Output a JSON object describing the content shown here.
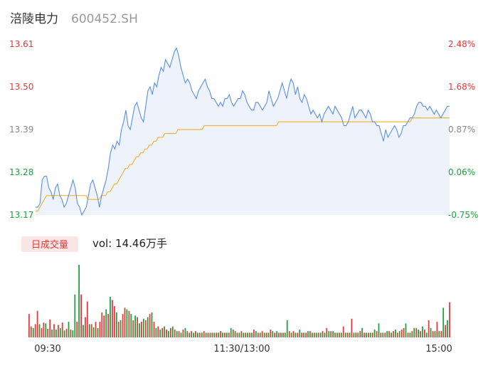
{
  "header": {
    "name": "涪陵电力",
    "code": "600452.SH"
  },
  "volume_panel": {
    "tab_label": "日成交量",
    "summary": "vol: 14.46万手"
  },
  "colors": {
    "price_line": "#5b8ee0",
    "avg_line": "#f0b440",
    "area_fill": "#eef3fb",
    "up": "#e03a3a",
    "down": "#1aa13b",
    "neutral": "#888888",
    "badge_bg": "#fbe6e6"
  },
  "chart_data": [
    {
      "type": "line",
      "ylim": [
        13.17,
        13.61
      ],
      "y_ticks": [
        13.61,
        13.5,
        13.39,
        13.28,
        13.17
      ],
      "y_tick_labels": [
        "13.61",
        "13.50",
        "13.39",
        "13.28",
        "13.17"
      ],
      "y_right_ticks": [
        "2.48%",
        "1.68%",
        "0.87%",
        "0.06%",
        "-0.75%"
      ],
      "x_tick_labels": [
        "09:30",
        "11:30/13:00",
        "15:00"
      ],
      "series": [
        {
          "key": "price",
          "values": [
            13.19,
            13.19,
            13.2,
            13.26,
            13.27,
            13.27,
            13.24,
            13.23,
            13.21,
            13.24,
            13.25,
            13.22,
            13.21,
            13.19,
            13.2,
            13.22,
            13.24,
            13.26,
            13.24,
            13.2,
            13.19,
            13.17,
            13.18,
            13.19,
            13.22,
            13.25,
            13.26,
            13.24,
            13.22,
            13.19,
            13.22,
            13.24,
            13.26,
            13.29,
            13.33,
            13.35,
            13.34,
            13.36,
            13.35,
            13.39,
            13.41,
            13.44,
            13.4,
            13.39,
            13.42,
            13.45,
            13.46,
            13.44,
            13.42,
            13.41,
            13.45,
            13.49,
            13.5,
            13.48,
            13.51,
            13.5,
            13.53,
            13.55,
            13.54,
            13.57,
            13.56,
            13.55,
            13.57,
            13.59,
            13.6,
            13.58,
            13.55,
            13.53,
            13.51,
            13.52,
            13.51,
            13.49,
            13.48,
            13.47,
            13.49,
            13.5,
            13.51,
            13.52,
            13.5,
            13.49,
            13.47,
            13.47,
            13.46,
            13.45,
            13.46,
            13.45,
            13.47,
            13.47,
            13.48,
            13.46,
            13.45,
            13.46,
            13.47,
            13.47,
            13.49,
            13.48,
            13.46,
            13.45,
            13.44,
            13.44,
            13.46,
            13.46,
            13.45,
            13.44,
            13.45,
            13.46,
            13.49,
            13.47,
            13.45,
            13.46,
            13.47,
            13.49,
            13.51,
            13.49,
            13.47,
            13.5,
            13.52,
            13.51,
            13.48,
            13.5,
            13.47,
            13.46,
            13.48,
            13.47,
            13.45,
            13.43,
            13.44,
            13.43,
            13.42,
            13.43,
            13.41,
            13.43,
            13.44,
            13.45,
            13.44,
            13.43,
            13.45,
            13.44,
            13.43,
            13.42,
            13.4,
            13.4,
            13.41,
            13.43,
            13.45,
            13.42,
            13.43,
            13.44,
            13.44,
            13.43,
            13.42,
            13.44,
            13.43,
            13.41,
            13.41,
            13.4,
            13.4,
            13.38,
            13.36,
            13.39,
            13.37,
            13.38,
            13.39,
            13.4,
            13.39,
            13.37,
            13.38,
            13.4,
            13.4,
            13.41,
            13.42,
            13.42,
            13.43,
            13.45,
            13.46,
            13.46,
            13.45,
            13.45,
            13.44,
            13.45,
            13.44,
            13.43,
            13.44,
            13.43,
            13.42,
            13.43,
            13.44,
            13.45,
            13.45
          ],
          "color": "#5b8ee0"
        },
        {
          "key": "average",
          "values": [
            13.18,
            13.18,
            13.19,
            13.2,
            13.21,
            13.22,
            13.22,
            13.22,
            13.22,
            13.22,
            13.22,
            13.22,
            13.22,
            13.22,
            13.22,
            13.22,
            13.22,
            13.22,
            13.22,
            13.22,
            13.22,
            13.22,
            13.22,
            13.22,
            13.21,
            13.21,
            13.21,
            13.21,
            13.21,
            13.21,
            13.22,
            13.22,
            13.22,
            13.23,
            13.23,
            13.24,
            13.25,
            13.25,
            13.26,
            13.27,
            13.28,
            13.29,
            13.29,
            13.3,
            13.3,
            13.31,
            13.32,
            13.32,
            13.33,
            13.33,
            13.34,
            13.34,
            13.35,
            13.35,
            13.36,
            13.36,
            13.37,
            13.37,
            13.37,
            13.38,
            13.38,
            13.38,
            13.38,
            13.38,
            13.38,
            13.39,
            13.39,
            13.39,
            13.39,
            13.39,
            13.39,
            13.39,
            13.39,
            13.39,
            13.39,
            13.39,
            13.39,
            13.4,
            13.4,
            13.4,
            13.4,
            13.4,
            13.4,
            13.4,
            13.4,
            13.4,
            13.4,
            13.4,
            13.4,
            13.4,
            13.4,
            13.4,
            13.4,
            13.4,
            13.4,
            13.4,
            13.4,
            13.4,
            13.4,
            13.4,
            13.4,
            13.4,
            13.4,
            13.4,
            13.4,
            13.4,
            13.4,
            13.4,
            13.4,
            13.4,
            13.4,
            13.41,
            13.41,
            13.41,
            13.41,
            13.41,
            13.41,
            13.41,
            13.41,
            13.41,
            13.41,
            13.41,
            13.41,
            13.41,
            13.41,
            13.41,
            13.41,
            13.41,
            13.41,
            13.41,
            13.41,
            13.41,
            13.41,
            13.41,
            13.41,
            13.41,
            13.41,
            13.41,
            13.41,
            13.41,
            13.41,
            13.41,
            13.41,
            13.41,
            13.41,
            13.41,
            13.41,
            13.41,
            13.41,
            13.41,
            13.41,
            13.41,
            13.41,
            13.41,
            13.41,
            13.41,
            13.41,
            13.41,
            13.41,
            13.41,
            13.41,
            13.41,
            13.41,
            13.41,
            13.41,
            13.41,
            13.41,
            13.41,
            13.41,
            13.41,
            13.41,
            13.41,
            13.42,
            13.42,
            13.42,
            13.42,
            13.42,
            13.42,
            13.42,
            13.42,
            13.42,
            13.42,
            13.42,
            13.42,
            13.42,
            13.42,
            13.42,
            13.42,
            13.42,
            13.42
          ],
          "color": "#f0b440"
        }
      ]
    },
    {
      "type": "bar",
      "x_tick_labels": [
        "09:30",
        "11:30/13:00",
        "15:00"
      ],
      "values": [
        30,
        14,
        12,
        17,
        34,
        17,
        12,
        19,
        18,
        11,
        23,
        10,
        17,
        10,
        16,
        12,
        19,
        9,
        11,
        20,
        10,
        9,
        55,
        20,
        93,
        55,
        16,
        26,
        46,
        17,
        17,
        13,
        20,
        12,
        20,
        32,
        28,
        36,
        30,
        52,
        48,
        40,
        32,
        20,
        22,
        30,
        38,
        36,
        34,
        30,
        22,
        28,
        26,
        18,
        20,
        24,
        22,
        26,
        30,
        32,
        20,
        12,
        14,
        10,
        12,
        14,
        10,
        8,
        12,
        14,
        10,
        8,
        8,
        6,
        10,
        12,
        8,
        6,
        8,
        6,
        8,
        6,
        6,
        6,
        8,
        6,
        6,
        6,
        6,
        6,
        6,
        6,
        8,
        6,
        6,
        6,
        6,
        12,
        10,
        8,
        6,
        6,
        8,
        6,
        6,
        6,
        6,
        6,
        10,
        8,
        6,
        6,
        8,
        6,
        6,
        6,
        10,
        8,
        6,
        8,
        6,
        6,
        6,
        6,
        22,
        8,
        6,
        8,
        6,
        6,
        10,
        6,
        6,
        6,
        8,
        8,
        6,
        6,
        6,
        6,
        6,
        8,
        6,
        12,
        8,
        8,
        8,
        6,
        6,
        6,
        6,
        14,
        6,
        6,
        6,
        24,
        6,
        6,
        6,
        8,
        12,
        6,
        6,
        6,
        6,
        6,
        10,
        8,
        18,
        6,
        6,
        6,
        8,
        8,
        6,
        8,
        10,
        6,
        8,
        10,
        12,
        18,
        6,
        6,
        8,
        12,
        12,
        10,
        8,
        14,
        10,
        6,
        22,
        12,
        8,
        8,
        20,
        8,
        8,
        38,
        16,
        22,
        45
      ],
      "directions": [
        "u",
        "u",
        "d",
        "u",
        "u",
        "d",
        "u",
        "u",
        "d",
        "u",
        "u",
        "d",
        "u",
        "d",
        "u",
        "d",
        "u",
        "d",
        "u",
        "d",
        "u",
        "d",
        "d",
        "u",
        "d",
        "u",
        "d",
        "u",
        "u",
        "d",
        "u",
        "d",
        "u",
        "d",
        "u",
        "u",
        "u",
        "d",
        "u",
        "d",
        "u",
        "u",
        "d",
        "u",
        "d",
        "u",
        "u",
        "d",
        "u",
        "d",
        "u",
        "d",
        "u",
        "d",
        "u",
        "d",
        "u",
        "d",
        "u",
        "d",
        "u",
        "d",
        "u",
        "d",
        "u",
        "d",
        "u",
        "d",
        "u",
        "d",
        "u",
        "d",
        "u",
        "d",
        "u",
        "d",
        "u",
        "d",
        "u",
        "d",
        "u",
        "d",
        "u",
        "d",
        "u",
        "d",
        "u",
        "d",
        "u",
        "d",
        "u",
        "d",
        "u",
        "d",
        "u",
        "d",
        "u",
        "d",
        "u",
        "d",
        "u",
        "d",
        "u",
        "d",
        "u",
        "d",
        "u",
        "d",
        "u",
        "d",
        "u",
        "d",
        "u",
        "d",
        "u",
        "d",
        "u",
        "d",
        "u",
        "d",
        "u",
        "d",
        "u",
        "d",
        "d",
        "u",
        "d",
        "u",
        "d",
        "u",
        "d",
        "u",
        "d",
        "u",
        "d",
        "u",
        "d",
        "u",
        "d",
        "u",
        "d",
        "u",
        "d",
        "u",
        "d",
        "u",
        "d",
        "u",
        "d",
        "u",
        "d",
        "u",
        "d",
        "u",
        "d",
        "u",
        "d",
        "u",
        "d",
        "u",
        "d",
        "u",
        "d",
        "u",
        "d",
        "u",
        "d",
        "u",
        "d",
        "u",
        "d",
        "u",
        "d",
        "u",
        "d",
        "u",
        "d",
        "u",
        "d",
        "u",
        "u",
        "d",
        "u",
        "d",
        "u",
        "d",
        "u",
        "d",
        "u",
        "d",
        "u",
        "d",
        "u",
        "d",
        "u",
        "d",
        "u",
        "d",
        "u",
        "d",
        "u",
        "d",
        "u",
        "u",
        "d",
        "n"
      ]
    }
  ]
}
